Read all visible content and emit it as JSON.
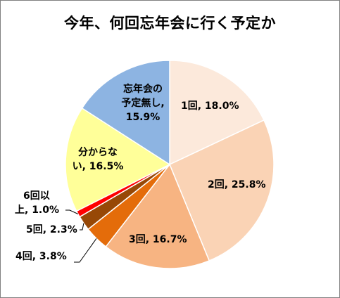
{
  "chart_data": {
    "type": "pie",
    "title": "今年、何回忘年会に行く予定か",
    "slices": [
      {
        "label": "1回",
        "value": 18.0,
        "value_text": "18.0%",
        "color": "#FCE9DB"
      },
      {
        "label": "2回",
        "value": 25.8,
        "value_text": "25.8%",
        "color": "#FAD3B5"
      },
      {
        "label": "3回",
        "value": 16.7,
        "value_text": "16.7%",
        "color": "#F7B482"
      },
      {
        "label": "4回",
        "value": 3.8,
        "value_text": "3.8%",
        "color": "#E46C0A"
      },
      {
        "label": "5回",
        "value": 2.3,
        "value_text": "2.3%",
        "color": "#974806"
      },
      {
        "label": "6回以上",
        "value": 1.0,
        "value_text": "1.0%",
        "color": "#FF0000"
      },
      {
        "label": "分からない",
        "value": 16.5,
        "value_text": "16.5%",
        "color": "#FFFF99"
      },
      {
        "label": "忘年会の予定無し",
        "value": 15.9,
        "value_text": "15.9%",
        "color": "#8DB4E2"
      }
    ],
    "labels": {
      "s0": "1回, 18.0%",
      "s1": "2回, 25.8%",
      "s2": "3回, 16.7%",
      "s3": "4回, 3.8%",
      "s4": "5回, 2.3%",
      "s5_line1": "6回以",
      "s5_line2": "上, 1.0%",
      "s6_line1": "分からな",
      "s6_line2": "い, 16.5%",
      "s7_line1": "忘年会の",
      "s7_line2": "予定無し,",
      "s7_line3": "15.9%"
    },
    "start_angle_deg": 0,
    "direction": "clockwise",
    "legend": "none"
  }
}
